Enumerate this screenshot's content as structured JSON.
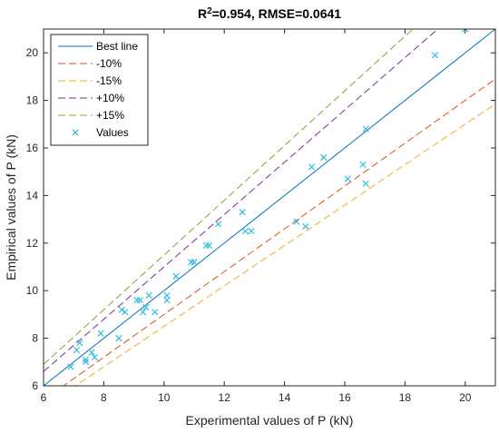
{
  "chart_data": {
    "type": "scatter",
    "title": {
      "base": "R",
      "sup": "2",
      "rest": "=0.954, RMSE=0.0641"
    },
    "xlabel": "Experimental values of P (kN)",
    "ylabel": "Empirical values of P (kN)",
    "xlim": [
      6,
      21
    ],
    "ylim": [
      6,
      21
    ],
    "xticks": [
      6,
      8,
      10,
      12,
      14,
      16,
      18,
      20
    ],
    "yticks": [
      6,
      8,
      10,
      12,
      14,
      16,
      18,
      20
    ],
    "grid": false,
    "legend_position": "top-left",
    "lines": [
      {
        "name": "Best line",
        "factor": 1.0,
        "color": "#0072BD",
        "style": "solid"
      },
      {
        "name": "-10%",
        "factor": 0.9,
        "color": "#D95319",
        "style": "dashed"
      },
      {
        "name": "-15%",
        "factor": 0.85,
        "color": "#EDB120",
        "style": "dashed"
      },
      {
        "name": "+10%",
        "factor": 1.1,
        "color": "#7E2F8E",
        "style": "dashed"
      },
      {
        "name": "+15%",
        "factor": 1.15,
        "color": "#77AC30",
        "style": "dashed"
      }
    ],
    "series": [
      {
        "name": "Values",
        "color": "#1FB8E0",
        "marker": "x",
        "points": [
          [
            6.9,
            6.8
          ],
          [
            7.1,
            7.5
          ],
          [
            7.2,
            7.8
          ],
          [
            7.4,
            7.0
          ],
          [
            7.4,
            7.1
          ],
          [
            7.6,
            7.4
          ],
          [
            7.7,
            7.2
          ],
          [
            7.9,
            8.2
          ],
          [
            8.5,
            8.0
          ],
          [
            8.6,
            9.2
          ],
          [
            8.7,
            9.1
          ],
          [
            9.1,
            9.6
          ],
          [
            9.2,
            9.6
          ],
          [
            9.3,
            9.1
          ],
          [
            9.4,
            9.3
          ],
          [
            9.5,
            9.8
          ],
          [
            9.7,
            9.1
          ],
          [
            10.1,
            9.8
          ],
          [
            10.1,
            9.6
          ],
          [
            10.4,
            10.6
          ],
          [
            10.9,
            11.2
          ],
          [
            11.0,
            11.2
          ],
          [
            11.4,
            11.9
          ],
          [
            11.5,
            11.9
          ],
          [
            11.8,
            12.8
          ],
          [
            12.6,
            13.3
          ],
          [
            12.7,
            12.5
          ],
          [
            12.9,
            12.5
          ],
          [
            14.4,
            12.9
          ],
          [
            14.7,
            12.7
          ],
          [
            14.9,
            15.2
          ],
          [
            15.3,
            15.6
          ],
          [
            16.1,
            14.7
          ],
          [
            16.6,
            15.3
          ],
          [
            16.7,
            14.5
          ],
          [
            16.7,
            16.8
          ],
          [
            19.0,
            19.9
          ],
          [
            20.0,
            21.0
          ]
        ]
      }
    ]
  }
}
